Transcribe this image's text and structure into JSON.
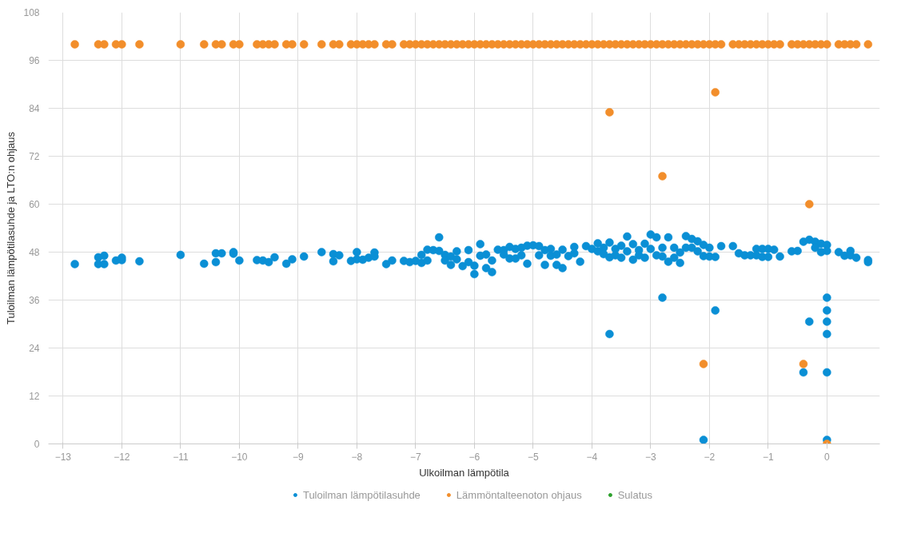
{
  "chart_data": {
    "type": "scatter",
    "xlabel": "Ulkoilman lämpötila",
    "ylabel": "Tuloilman lämpötilasuhde ja LTO:n ohjaus",
    "xlim": [
      -13.25,
      0.9
    ],
    "ylim": [
      0,
      108
    ],
    "xticks": [
      -13,
      -12,
      -11,
      -10,
      -9,
      -8,
      -7,
      -6,
      -5,
      -4,
      -3,
      -2,
      -1,
      0
    ],
    "yticks": [
      0,
      12,
      24,
      36,
      48,
      60,
      72,
      84,
      96,
      108
    ],
    "grid": true,
    "legend": "bottom",
    "marker": "circle",
    "series": [
      {
        "name": "Tuloilman lämpötilasuhde",
        "color": "#0a8fd5",
        "x": [
          -12.8,
          -12.4,
          -12.4,
          -12.3,
          -12.3,
          -12.1,
          -12.0,
          -12.0,
          -11.7,
          -11.0,
          -10.6,
          -10.4,
          -10.4,
          -10.3,
          -10.1,
          -10.1,
          -10.0,
          -9.7,
          -9.6,
          -9.5,
          -9.4,
          -9.2,
          -9.1,
          -8.9,
          -8.6,
          -8.4,
          -8.4,
          -8.3,
          -8.1,
          -8.0,
          -8.0,
          -7.9,
          -7.8,
          -7.7,
          -7.7,
          -7.5,
          -7.4,
          -7.2,
          -7.1,
          -7.0,
          -6.9,
          -6.9,
          -6.8,
          -6.8,
          -6.7,
          -6.6,
          -6.6,
          -6.5,
          -6.5,
          -6.4,
          -6.4,
          -6.3,
          -6.3,
          -6.2,
          -6.1,
          -6.1,
          -6.0,
          -6.0,
          -5.9,
          -5.9,
          -5.8,
          -5.8,
          -5.7,
          -5.7,
          -5.6,
          -5.5,
          -5.5,
          -5.4,
          -5.4,
          -5.3,
          -5.3,
          -5.2,
          -5.2,
          -5.1,
          -5.1,
          -5.0,
          -4.9,
          -4.9,
          -4.8,
          -4.8,
          -4.7,
          -4.7,
          -4.6,
          -4.6,
          -4.5,
          -4.5,
          -4.4,
          -4.3,
          -4.3,
          -4.2,
          -4.1,
          -4.0,
          -3.9,
          -3.9,
          -3.8,
          -3.8,
          -3.7,
          -3.7,
          -3.6,
          -3.6,
          -3.5,
          -3.5,
          -3.4,
          -3.4,
          -3.3,
          -3.3,
          -3.2,
          -3.2,
          -3.1,
          -3.1,
          -3.0,
          -3.0,
          -2.9,
          -2.9,
          -2.8,
          -2.8,
          -2.7,
          -2.7,
          -2.6,
          -2.6,
          -2.5,
          -2.5,
          -2.4,
          -2.4,
          -2.3,
          -2.3,
          -2.2,
          -2.2,
          -2.1,
          -2.1,
          -2.0,
          -2.0,
          -1.9,
          -1.8,
          -1.6,
          -1.5,
          -1.4,
          -1.3,
          -1.2,
          -1.2,
          -1.1,
          -1.1,
          -1.0,
          -1.0,
          -0.9,
          -0.8,
          -0.6,
          -0.5,
          -0.4,
          -0.3,
          -0.2,
          -0.2,
          -0.1,
          -0.1,
          0.0,
          0.0,
          0.2,
          0.3,
          0.4,
          0.4,
          0.5,
          0.7,
          0.7,
          -3.7,
          -2.8,
          -1.9,
          -2.1,
          -0.3,
          0,
          0,
          0,
          0,
          -0.4,
          0,
          0
        ],
        "values": [
          45.0,
          46.7,
          45.0,
          47.1,
          45.0,
          45.9,
          46.6,
          46.0,
          45.7,
          47.3,
          45.1,
          47.7,
          45.5,
          47.7,
          48.0,
          47.6,
          45.9,
          46.0,
          45.9,
          45.5,
          46.7,
          45.1,
          46.2,
          46.9,
          48.0,
          47.5,
          45.7,
          47.2,
          45.8,
          48.0,
          46.2,
          46.1,
          46.6,
          47.9,
          46.9,
          45.0,
          45.9,
          45.8,
          45.5,
          45.8,
          45.3,
          47.3,
          48.6,
          45.9,
          48.5,
          51.7,
          48.3,
          47.3,
          45.9,
          46.9,
          44.8,
          48.2,
          46.2,
          44.5,
          48.5,
          45.5,
          44.6,
          42.5,
          50.0,
          47.1,
          47.4,
          44.0,
          45.9,
          43.0,
          48.6,
          48.5,
          47.4,
          49.3,
          46.4,
          48.8,
          46.4,
          49.1,
          47.2,
          49.6,
          45.1,
          49.7,
          49.5,
          47.2,
          48.5,
          44.8,
          48.8,
          47.1,
          47.4,
          44.8,
          48.6,
          44.0,
          47.0,
          49.3,
          47.7,
          45.6,
          49.5,
          48.8,
          50.2,
          48.2,
          49.1,
          47.5,
          50.4,
          46.7,
          48.8,
          47.2,
          49.6,
          46.6,
          51.9,
          48.2,
          50.0,
          46.1,
          48.5,
          47.2,
          50.1,
          46.6,
          52.4,
          48.8,
          51.7,
          47.2,
          49.1,
          46.9,
          51.7,
          45.6,
          49.1,
          46.6,
          47.9,
          45.3,
          52.0,
          49.1,
          51.3,
          49.1,
          50.7,
          48.2,
          49.8,
          47.0,
          49.1,
          46.9,
          46.8,
          49.5,
          49.5,
          47.7,
          47.2,
          47.2,
          48.8,
          47.2,
          48.8,
          46.8,
          48.8,
          46.8,
          48.6,
          46.9,
          48.2,
          48.3,
          50.6,
          51.1,
          50.6,
          49.1,
          50.1,
          48.0,
          49.8,
          48.3,
          48.0,
          47.1,
          48.3,
          47.2,
          46.6,
          46.0,
          45.5,
          27.5,
          36.6,
          33.4,
          1,
          30.6,
          36.6,
          33.4,
          30.6,
          27.5,
          17.9,
          17.9,
          1
        ]
      },
      {
        "name": "Lämmöntalteenoton ohjaus",
        "color": "#f28e2b",
        "x": [
          -12.8,
          -12.4,
          -12.3,
          -12.1,
          -12.0,
          -11.7,
          -11.0,
          -10.6,
          -10.4,
          -10.3,
          -10.1,
          -10.0,
          -9.7,
          -9.6,
          -9.5,
          -9.4,
          -9.2,
          -9.1,
          -8.9,
          -8.6,
          -8.4,
          -8.3,
          -8.1,
          -8.0,
          -7.9,
          -7.8,
          -7.7,
          -7.5,
          -7.4,
          -7.2,
          -7.1,
          -7.0,
          -6.9,
          -6.8,
          -6.7,
          -6.6,
          -6.5,
          -6.4,
          -6.3,
          -6.2,
          -6.1,
          -6.0,
          -5.9,
          -5.8,
          -5.7,
          -5.6,
          -5.5,
          -5.4,
          -5.3,
          -5.2,
          -5.1,
          -5.0,
          -4.9,
          -4.8,
          -4.7,
          -4.6,
          -4.5,
          -4.4,
          -4.3,
          -4.2,
          -4.1,
          -4.0,
          -3.9,
          -3.8,
          -3.7,
          -3.6,
          -3.5,
          -3.4,
          -3.3,
          -3.2,
          -3.1,
          -3.0,
          -2.9,
          -2.8,
          -2.7,
          -2.6,
          -2.5,
          -2.4,
          -2.3,
          -2.2,
          -2.1,
          -2.0,
          -1.9,
          -1.8,
          -1.6,
          -1.5,
          -1.4,
          -1.3,
          -1.2,
          -1.1,
          -1.0,
          -0.9,
          -0.8,
          -0.6,
          -0.5,
          -0.4,
          -0.3,
          -0.2,
          -0.1,
          0,
          0.2,
          0.3,
          0.4,
          0.5,
          0.7,
          -3.7,
          -1.9,
          -2.8,
          -0.3,
          -2.1,
          -0.4,
          0
        ],
        "values": [
          100,
          100,
          100,
          100,
          100,
          100,
          100,
          100,
          100,
          100,
          100,
          100,
          100,
          100,
          100,
          100,
          100,
          100,
          100,
          100,
          100,
          100,
          100,
          100,
          100,
          100,
          100,
          100,
          100,
          100,
          100,
          100,
          100,
          100,
          100,
          100,
          100,
          100,
          100,
          100,
          100,
          100,
          100,
          100,
          100,
          100,
          100,
          100,
          100,
          100,
          100,
          100,
          100,
          100,
          100,
          100,
          100,
          100,
          100,
          100,
          100,
          100,
          100,
          100,
          100,
          100,
          100,
          100,
          100,
          100,
          100,
          100,
          100,
          100,
          100,
          100,
          100,
          100,
          100,
          100,
          100,
          100,
          100,
          100,
          100,
          100,
          100,
          100,
          100,
          100,
          100,
          100,
          100,
          100,
          100,
          100,
          100,
          100,
          100,
          100,
          100,
          100,
          100,
          100,
          100,
          83,
          88,
          67,
          60,
          20,
          20,
          0
        ]
      },
      {
        "name": "Sulatus",
        "color": "#2ca02c"
      }
    ]
  }
}
